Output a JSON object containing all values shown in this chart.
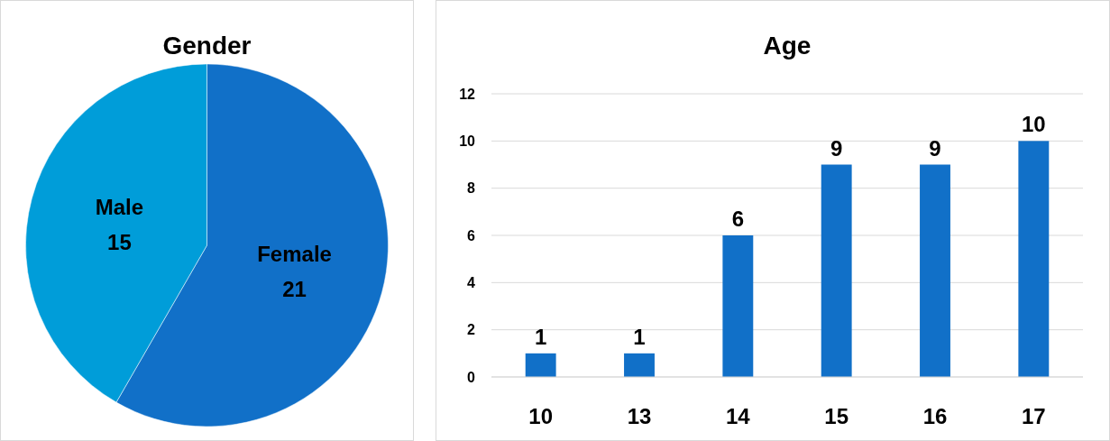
{
  "chart_data": [
    {
      "type": "pie",
      "title": "Gender",
      "categories": [
        "Female",
        "Male"
      ],
      "values": [
        21,
        15
      ],
      "colors": [
        "#1170c8",
        "#009dd9"
      ],
      "data_labels": true
    },
    {
      "type": "bar",
      "title": "Age",
      "categories": [
        "10",
        "13",
        "14",
        "15",
        "16",
        "17"
      ],
      "values": [
        1,
        1,
        6,
        9,
        9,
        10
      ],
      "color": "#1170c8",
      "ylim": [
        0,
        12
      ],
      "yticks": [
        0,
        2,
        4,
        6,
        8,
        10,
        12
      ],
      "grid": "y",
      "data_labels": true
    }
  ]
}
